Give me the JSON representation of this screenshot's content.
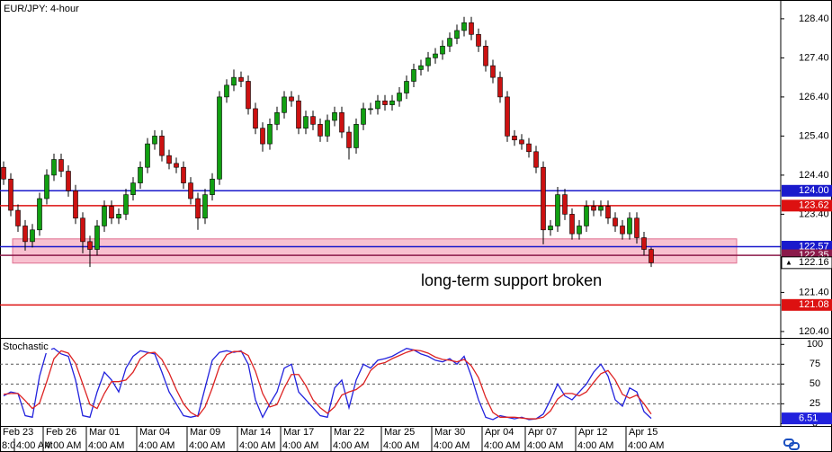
{
  "chart_data": {
    "type": "candlestick",
    "title": "EUR/JPY: 4-hour",
    "annotation": "long-term support broken",
    "up_color": "#11a011",
    "down_color": "#cc1111",
    "categories": [
      "Feb 23",
      null,
      null,
      null,
      null,
      null,
      "Feb 26",
      null,
      null,
      null,
      null,
      null,
      "Mar 01",
      null,
      null,
      null,
      null,
      null,
      null,
      "Mar 04",
      null,
      null,
      null,
      null,
      null,
      null,
      "Mar 09",
      null,
      null,
      null,
      null,
      null,
      null,
      "Mar 14",
      null,
      null,
      null,
      null,
      null,
      "Mar 17",
      null,
      null,
      null,
      null,
      null,
      null,
      "Mar 22",
      null,
      null,
      null,
      null,
      null,
      null,
      "Mar 25",
      null,
      null,
      null,
      null,
      null,
      null,
      "Mar 30",
      null,
      null,
      null,
      null,
      null,
      null,
      "Apr 04",
      null,
      null,
      null,
      null,
      null,
      "Apr 07",
      null,
      null,
      null,
      null,
      null,
      null,
      "Apr 12",
      null,
      null,
      null,
      null,
      null,
      null,
      "Apr 15",
      null,
      null,
      null
    ],
    "times": [
      "8:0",
      null,
      "4:00 AM",
      null,
      null,
      null,
      "4:00 AM",
      null,
      null,
      null,
      null,
      null,
      "4:00 AM",
      null,
      null,
      null,
      null,
      null,
      null,
      "4:00 AM",
      null,
      null,
      null,
      null,
      null,
      null,
      "4:00 AM",
      null,
      null,
      null,
      null,
      null,
      null,
      "4:00 AM",
      null,
      null,
      null,
      null,
      null,
      "4:00 AM",
      null,
      null,
      null,
      null,
      null,
      null,
      "4:00 AM",
      null,
      null,
      null,
      null,
      null,
      null,
      "4:00 AM",
      null,
      null,
      null,
      null,
      null,
      null,
      "4:00 AM",
      null,
      null,
      null,
      null,
      null,
      null,
      "4:00 AM",
      null,
      null,
      null,
      null,
      null,
      "4:00 AM",
      null,
      null,
      null,
      null,
      null,
      null,
      "4:00 AM",
      null,
      null,
      null,
      null,
      null,
      null,
      "4:00 AM",
      null,
      null,
      null
    ],
    "open": [
      124.6,
      124.3,
      123.5,
      123.1,
      122.7,
      123.0,
      123.8,
      124.4,
      124.8,
      124.5,
      124.0,
      123.3,
      122.7,
      122.5,
      123.1,
      123.6,
      123.3,
      123.4,
      123.9,
      124.2,
      124.6,
      125.2,
      125.4,
      124.9,
      124.7,
      124.6,
      124.2,
      123.8,
      123.3,
      123.9,
      124.3,
      126.4,
      126.7,
      126.9,
      126.8,
      126.1,
      125.6,
      125.2,
      125.7,
      126.0,
      126.4,
      126.3,
      125.6,
      125.9,
      125.7,
      125.4,
      125.8,
      126.0,
      125.5,
      125.1,
      125.7,
      126.1,
      126.1,
      126.3,
      126.2,
      126.3,
      126.5,
      126.8,
      127.1,
      127.2,
      127.4,
      127.5,
      127.7,
      127.9,
      128.1,
      128.3,
      128.0,
      127.7,
      127.2,
      126.9,
      126.4,
      125.4,
      125.3,
      125.2,
      125.0,
      124.6,
      123.0,
      123.1,
      123.9,
      123.4,
      122.9,
      123.1,
      123.6,
      123.5,
      123.6,
      123.3,
      123.1,
      122.9,
      123.3,
      122.8,
      122.5
    ],
    "high": [
      124.75,
      124.45,
      123.65,
      123.25,
      123.15,
      123.95,
      124.55,
      124.95,
      124.95,
      124.65,
      124.15,
      123.45,
      122.85,
      123.25,
      123.75,
      123.75,
      123.55,
      124.05,
      124.35,
      124.75,
      125.35,
      125.55,
      125.55,
      125.05,
      124.85,
      124.75,
      124.35,
      123.95,
      124.05,
      124.45,
      126.55,
      126.85,
      127.1,
      127.05,
      126.95,
      126.25,
      125.75,
      125.85,
      126.15,
      126.55,
      126.55,
      126.45,
      126.05,
      126.05,
      125.85,
      125.95,
      126.15,
      126.15,
      125.65,
      125.85,
      126.25,
      126.25,
      126.45,
      126.45,
      126.45,
      126.65,
      126.95,
      127.25,
      127.35,
      127.55,
      127.65,
      127.85,
      128.05,
      128.25,
      128.45,
      128.45,
      128.15,
      127.85,
      127.35,
      127.05,
      126.55,
      125.55,
      125.45,
      125.35,
      125.15,
      124.75,
      123.25,
      124.1,
      124.05,
      123.55,
      123.25,
      123.75,
      123.75,
      123.75,
      123.75,
      123.45,
      123.25,
      123.45,
      123.45,
      122.95,
      122.55
    ],
    "low": [
      124.15,
      123.35,
      122.95,
      122.47,
      122.55,
      122.85,
      123.65,
      124.25,
      124.35,
      123.85,
      123.15,
      122.4,
      122.05,
      122.35,
      122.95,
      123.15,
      123.15,
      123.25,
      123.75,
      124.05,
      124.45,
      125.05,
      124.75,
      124.55,
      124.45,
      124.05,
      123.65,
      123.0,
      123.15,
      123.75,
      124.15,
      126.25,
      126.55,
      126.65,
      125.95,
      125.45,
      125.0,
      125.05,
      125.55,
      125.85,
      126.15,
      125.45,
      125.45,
      125.55,
      125.25,
      125.25,
      125.65,
      125.35,
      124.8,
      124.95,
      125.55,
      125.95,
      125.95,
      126.05,
      126.05,
      126.15,
      126.35,
      126.65,
      126.95,
      127.05,
      127.25,
      127.35,
      127.55,
      127.75,
      127.95,
      127.85,
      127.55,
      127.05,
      126.75,
      126.25,
      125.25,
      125.15,
      125.05,
      124.85,
      124.45,
      122.63,
      122.85,
      122.95,
      123.25,
      122.75,
      122.75,
      122.95,
      123.35,
      123.35,
      123.15,
      122.95,
      122.75,
      122.75,
      122.65,
      122.35,
      122.05
    ],
    "close": [
      124.3,
      123.5,
      123.1,
      122.7,
      123.0,
      123.8,
      124.4,
      124.8,
      124.5,
      124.0,
      123.3,
      122.7,
      122.5,
      123.1,
      123.6,
      123.3,
      123.4,
      123.9,
      124.2,
      124.6,
      125.2,
      125.4,
      124.9,
      124.7,
      124.6,
      124.2,
      123.8,
      123.3,
      123.9,
      124.3,
      126.4,
      126.7,
      126.9,
      126.8,
      126.1,
      125.6,
      125.2,
      125.7,
      126.0,
      126.4,
      126.3,
      125.6,
      125.9,
      125.7,
      125.4,
      125.8,
      126.0,
      125.5,
      125.1,
      125.7,
      126.1,
      126.1,
      126.3,
      126.2,
      126.3,
      126.5,
      126.8,
      127.1,
      127.2,
      127.4,
      127.5,
      127.7,
      127.9,
      128.1,
      128.3,
      128.0,
      127.7,
      127.2,
      126.9,
      126.4,
      125.4,
      125.3,
      125.2,
      125.0,
      124.6,
      123.0,
      123.1,
      123.9,
      123.4,
      122.9,
      123.1,
      123.6,
      123.5,
      123.6,
      123.3,
      123.1,
      122.9,
      123.3,
      122.8,
      122.5,
      122.16
    ],
    "ylim": [
      120.26,
      128.88
    ],
    "yticks": [
      {
        "value": 128.4,
        "label": "128.40"
      },
      {
        "value": 127.4,
        "label": "127.40"
      },
      {
        "value": 126.4,
        "label": "126.40"
      },
      {
        "value": 125.4,
        "label": "125.40"
      },
      {
        "value": 124.4,
        "label": "124.40"
      },
      {
        "value": 123.4,
        "label": "123.40"
      },
      {
        "value": 121.4,
        "label": "121.40"
      },
      {
        "value": 120.4,
        "label": "120.40"
      }
    ],
    "levels": [
      {
        "value": 124,
        "label": "124.00",
        "color": "#1a1acc"
      },
      {
        "value": 123.62,
        "label": "123.62",
        "color": "#dd1111"
      },
      {
        "value": 122.57,
        "label": "122.57",
        "color": "#1a1acc"
      },
      {
        "value": 122.35,
        "label": "122.35",
        "color": "#8b1a4a"
      },
      {
        "value": 121.08,
        "label": "121.08",
        "color": "#dd1111"
      }
    ],
    "zone": {
      "low": 122.15,
      "high": 122.77,
      "color": "#f7b6c8"
    },
    "indicator": {
      "name": "Stochastic",
      "ylim": [
        -3,
        106
      ],
      "yticks": [
        100,
        75,
        50,
        25,
        0
      ],
      "levels": [
        75,
        50,
        25
      ],
      "series": [
        {
          "color": "#2222dd",
          "values": [
            35,
            40,
            38,
            10,
            8,
            60,
            92,
            95,
            88,
            85,
            55,
            10,
            8,
            40,
            65,
            55,
            40,
            70,
            85,
            92,
            90,
            88,
            65,
            40,
            25,
            10,
            8,
            10,
            45,
            80,
            90,
            92,
            90,
            92,
            75,
            30,
            8,
            25,
            40,
            70,
            75,
            40,
            30,
            20,
            10,
            8,
            45,
            55,
            20,
            55,
            75,
            70,
            80,
            82,
            85,
            90,
            95,
            93,
            88,
            85,
            80,
            78,
            82,
            75,
            85,
            60,
            30,
            8,
            5,
            10,
            8,
            6,
            8,
            5,
            6,
            12,
            30,
            50,
            35,
            30,
            40,
            50,
            65,
            75,
            60,
            30,
            22,
            45,
            40,
            15,
            6.51
          ]
        },
        {
          "color": "#dd2222",
          "values": [
            37,
            38,
            38,
            29,
            19,
            26,
            53,
            82,
            92,
            89,
            76,
            50,
            24,
            19,
            38,
            53,
            53,
            55,
            65,
            82,
            89,
            90,
            81,
            64,
            43,
            25,
            14,
            9,
            21,
            45,
            72,
            87,
            91,
            91,
            86,
            66,
            38,
            21,
            24,
            45,
            62,
            62,
            48,
            30,
            20,
            13,
            21,
            36,
            40,
            43,
            50,
            67,
            75,
            77,
            82,
            86,
            90,
            93,
            92,
            89,
            84,
            81,
            80,
            78,
            81,
            73,
            58,
            33,
            14,
            8,
            8,
            8,
            7,
            6,
            6,
            8,
            16,
            31,
            38,
            38,
            35,
            40,
            52,
            63,
            67,
            55,
            37,
            32,
            36,
            25,
            12
          ]
        }
      ]
    }
  }
}
